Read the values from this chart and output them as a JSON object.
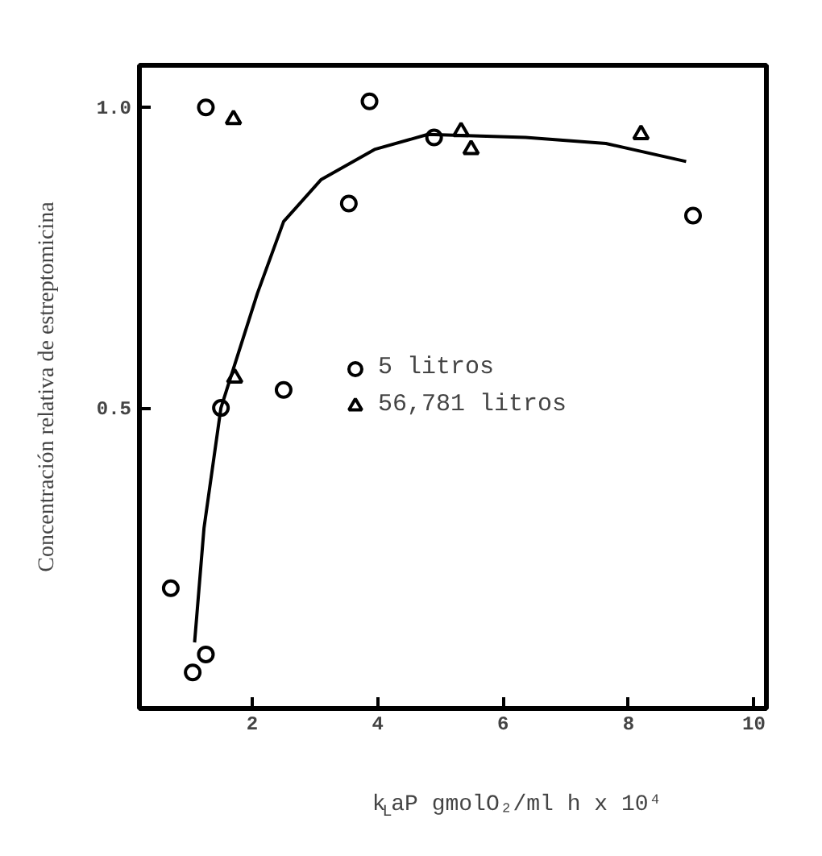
{
  "chart_data": {
    "type": "scatter",
    "xlabel": "k$_{L}$aP gmolO₂/ml h x 10⁴",
    "ylabel": "Concentración relativa de estreptomicina",
    "xlim": [
      0.2,
      10.2
    ],
    "ylim": [
      0,
      1.07
    ],
    "xticks": [
      2,
      4,
      6,
      8,
      10
    ],
    "yticks": [
      {
        "value": 0.5,
        "label": "0.5"
      },
      {
        "value": 1,
        "label": "1.0"
      }
    ],
    "grid": false,
    "legend": "center",
    "series": [
      {
        "name": "5 litros",
        "color": "#000000",
        "marker": "circle",
        "x": [
          0.7,
          1.05,
          1.26,
          1.5,
          2.5,
          3.54,
          3.87,
          4.9,
          1.26,
          9.03
        ],
        "values": [
          0.2,
          0.06,
          0.09,
          0.5,
          0.53,
          0.84,
          1.01,
          0.95,
          1.0,
          0.82
        ]
      },
      {
        "name": "56,781 litros",
        "color": "#000000",
        "marker": "triangle",
        "x": [
          1.72,
          1.7,
          5.33,
          5.49,
          8.2
        ],
        "values": [
          0.55,
          0.98,
          0.96,
          0.93,
          0.955
        ]
      },
      {
        "type": "line",
        "color": "#000000",
        "marker": "none",
        "line_style": "solid",
        "x": [
          1.08,
          1.23,
          1.5,
          2.08,
          2.5,
          3.1,
          3.95,
          4.8,
          6.36,
          7.64,
          8.92
        ],
        "values": [
          0.11,
          0.3,
          0.5,
          0.69,
          0.81,
          0.88,
          0.93,
          0.955,
          0.95,
          0.94,
          0.91
        ]
      }
    ]
  }
}
